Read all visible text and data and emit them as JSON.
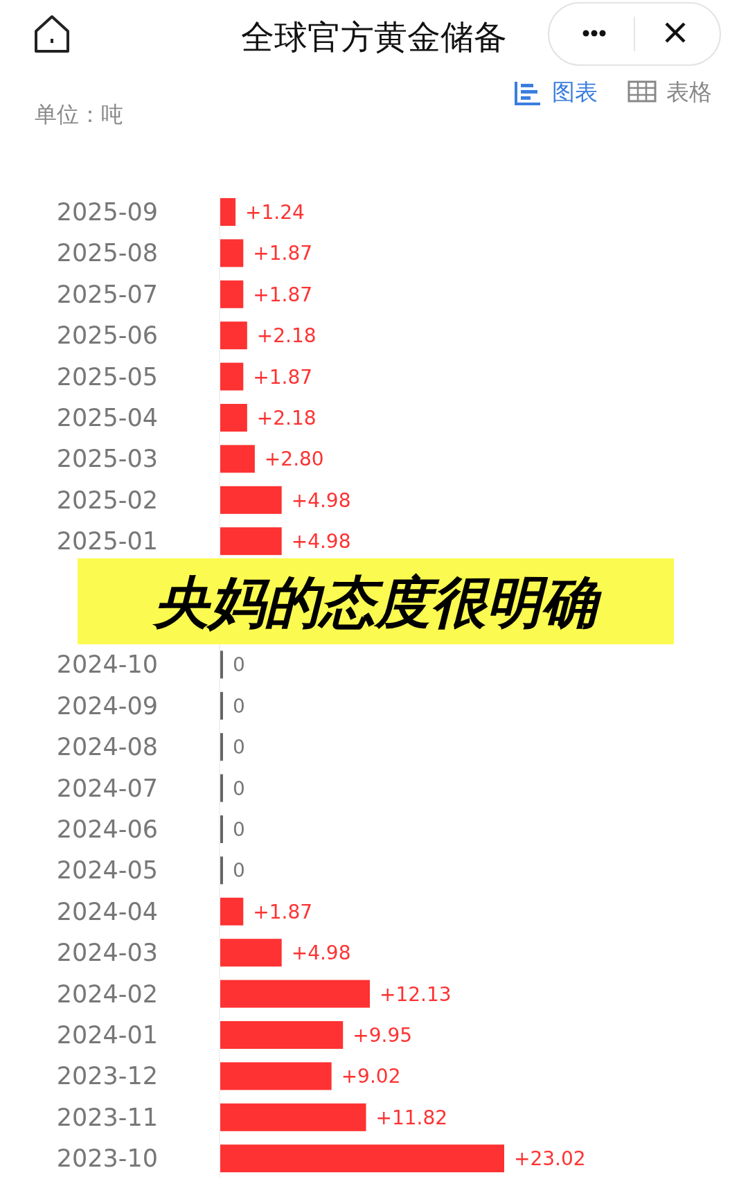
{
  "chart_data": {
    "type": "bar",
    "orientation": "horizontal",
    "title": "全球官方黄金储备",
    "tick_labels": "y",
    "annotations": [
      "单位：吨",
      "图表",
      "表格",
      "央妈的态度很明确"
    ],
    "categories": [
      "2025-09",
      "2025-08",
      "2025-07",
      "2025-06",
      "2025-05",
      "2025-04",
      "2025-03",
      "2025-02",
      "2025-01",
      null,
      null,
      "2024-10",
      "2024-09",
      "2024-08",
      "2024-07",
      "2024-06",
      "2024-05",
      "2024-04",
      "2024-03",
      "2024-02",
      "2024-01",
      "2023-12",
      "2023-11",
      "2023-10"
    ],
    "values": [
      1.24,
      1.87,
      1.87,
      2.18,
      1.87,
      2.18,
      2.8,
      4.98,
      4.98,
      null,
      null,
      0,
      0,
      0,
      0,
      0,
      0,
      1.87,
      4.98,
      12.13,
      9.95,
      9.02,
      11.82,
      23.02
    ],
    "value_labels": [
      "+1.24",
      "+1.87",
      "+1.87",
      "+2.18",
      "+1.87",
      "+2.18",
      "+2.80",
      "+4.98",
      "+4.98",
      null,
      null,
      "0",
      "0",
      "0",
      "0",
      "0",
      "0",
      "+1.87",
      "+4.98",
      "+12.13",
      "+9.95",
      "+9.02",
      "+11.82",
      "+23.02"
    ],
    "colors": [
      "#fe3232",
      "#fe3232",
      "#fe3232",
      "#fe3232",
      "#fe3232",
      "#fe3232",
      "#fe3232",
      "#fe3232",
      "#fe3232",
      null,
      null,
      "#666666",
      "#666666",
      "#666666",
      "#666666",
      "#666666",
      "#666666",
      "#fe3232",
      "#fe3232",
      "#fe3232",
      "#fe3232",
      "#fe3232",
      "#fe3232",
      "#fe3232"
    ]
  }
}
